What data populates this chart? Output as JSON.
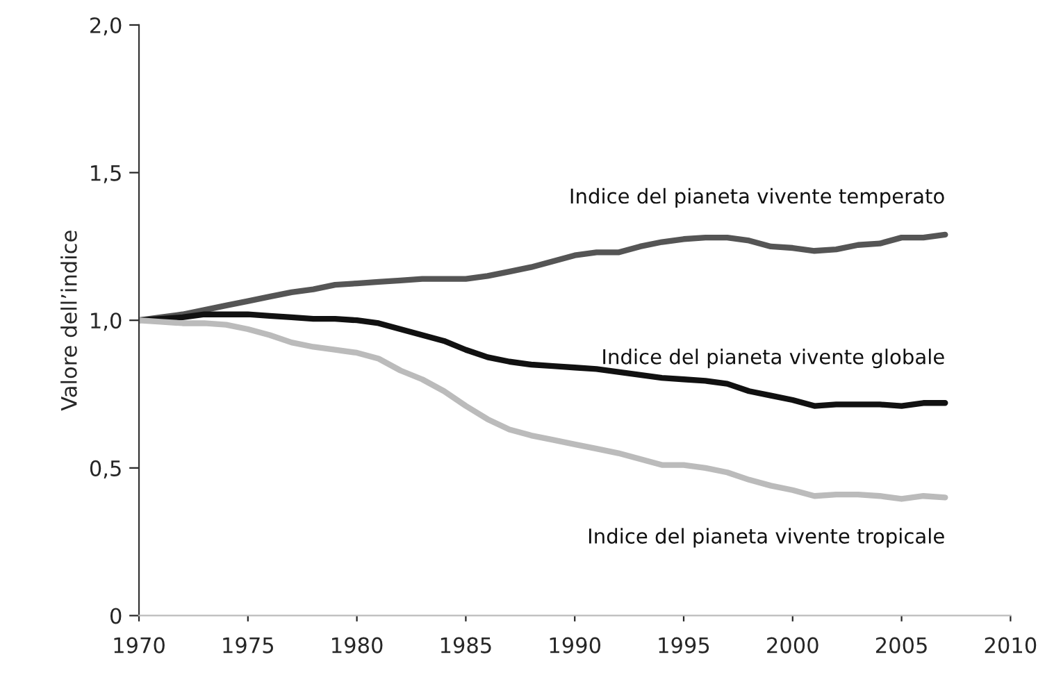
{
  "chart_data": {
    "type": "line",
    "ylabel": "Valore dell’indice",
    "x": [
      1970,
      1971,
      1972,
      1973,
      1974,
      1975,
      1976,
      1977,
      1978,
      1979,
      1980,
      1981,
      1982,
      1983,
      1984,
      1985,
      1986,
      1987,
      1988,
      1989,
      1990,
      1991,
      1992,
      1993,
      1994,
      1995,
      1996,
      1997,
      1998,
      1999,
      2000,
      2001,
      2002,
      2003,
      2004,
      2005,
      2006,
      2007
    ],
    "series": [
      {
        "name": "Indice del pianeta vivente temperato",
        "color": "#555555",
        "values": [
          1.0,
          1.01,
          1.02,
          1.035,
          1.05,
          1.065,
          1.08,
          1.095,
          1.105,
          1.12,
          1.125,
          1.13,
          1.135,
          1.14,
          1.14,
          1.14,
          1.15,
          1.165,
          1.18,
          1.2,
          1.22,
          1.23,
          1.23,
          1.25,
          1.265,
          1.275,
          1.28,
          1.28,
          1.27,
          1.25,
          1.245,
          1.235,
          1.24,
          1.255,
          1.26,
          1.28,
          1.28,
          1.29
        ]
      },
      {
        "name": "Indice del pianeta vivente globale",
        "color": "#111111",
        "values": [
          1.0,
          1.005,
          1.01,
          1.02,
          1.02,
          1.02,
          1.015,
          1.01,
          1.005,
          1.005,
          1.0,
          0.99,
          0.97,
          0.95,
          0.93,
          0.9,
          0.875,
          0.86,
          0.85,
          0.845,
          0.84,
          0.835,
          0.825,
          0.815,
          0.805,
          0.8,
          0.795,
          0.785,
          0.76,
          0.745,
          0.73,
          0.71,
          0.715,
          0.715,
          0.715,
          0.71,
          0.72,
          0.72
        ]
      },
      {
        "name": "Indice del pianeta vivente tropicale",
        "color": "#bbbbbb",
        "values": [
          1.0,
          0.995,
          0.99,
          0.99,
          0.985,
          0.97,
          0.95,
          0.925,
          0.91,
          0.9,
          0.89,
          0.87,
          0.83,
          0.8,
          0.76,
          0.71,
          0.665,
          0.63,
          0.61,
          0.595,
          0.58,
          0.565,
          0.55,
          0.53,
          0.51,
          0.51,
          0.5,
          0.485,
          0.46,
          0.44,
          0.425,
          0.405,
          0.41,
          0.41,
          0.405,
          0.395,
          0.405,
          0.4
        ]
      }
    ],
    "xlim": [
      1970,
      2010
    ],
    "xticks": [
      1970,
      1975,
      1980,
      1985,
      1990,
      1995,
      2000,
      2005,
      2010
    ],
    "ylim": [
      0,
      2.0
    ],
    "yticks": [
      {
        "value": 0,
        "label": "0"
      },
      {
        "value": 0.5,
        "label": "0,5"
      },
      {
        "value": 1.0,
        "label": "1,0"
      },
      {
        "value": 1.5,
        "label": "1,5"
      },
      {
        "value": 2.0,
        "label": "2,0"
      }
    ],
    "grid": false,
    "legend": false,
    "marker": "none",
    "line_style": "solid"
  }
}
